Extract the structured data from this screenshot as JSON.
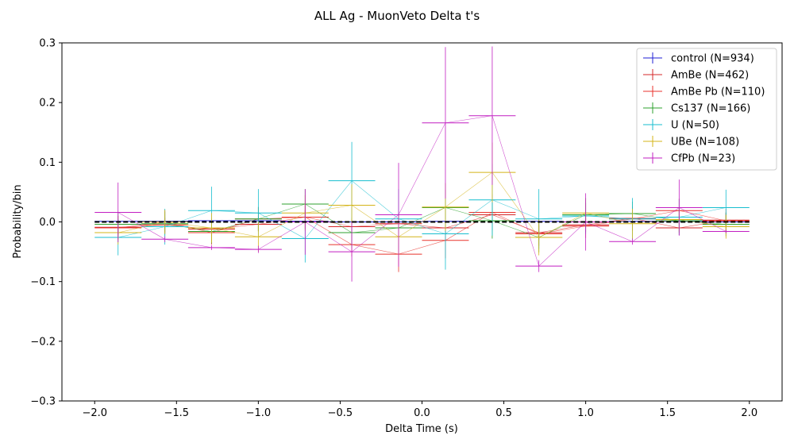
{
  "chart_data": {
    "type": "scatter",
    "title": "ALL Ag - MuonVeto Delta t's",
    "xlabel": "Delta Time (s)",
    "ylabel": "Probability/bin",
    "xlim": [
      -2.2,
      2.2
    ],
    "ylim": [
      -0.3,
      0.3
    ],
    "x_ticks": [
      -2.0,
      -1.5,
      -1.0,
      -0.5,
      0.0,
      0.5,
      1.0,
      1.5,
      2.0
    ],
    "x_tick_labels": [
      "−2.0",
      "−1.5",
      "−1.0",
      "−0.5",
      "0.0",
      "0.5",
      "1.0",
      "1.5",
      "2.0"
    ],
    "y_ticks": [
      -0.3,
      -0.2,
      -0.1,
      0.0,
      0.1,
      0.2,
      0.3
    ],
    "y_tick_labels": [
      "−0.3",
      "−0.2",
      "−0.1",
      "0.0",
      "0.1",
      "0.2",
      "0.3"
    ],
    "grid": false,
    "legend_position": "top-right",
    "bin_half_width": 0.143,
    "baseline": {
      "y": 0.0,
      "style": "dashed",
      "color": "#000000"
    },
    "x": [
      -1.857,
      -1.571,
      -1.286,
      -1.0,
      -0.714,
      -0.429,
      -0.143,
      0.143,
      0.429,
      0.714,
      1.0,
      1.286,
      1.571,
      1.857
    ],
    "series": [
      {
        "name": "control (N=934)",
        "color": "#1f1fd6",
        "y": [
          0.001,
          0.001,
          0.002,
          0.002,
          0.001,
          0.0,
          0.0,
          0.001,
          0.002,
          0.001,
          0.0,
          0.001,
          0.001,
          0.0
        ],
        "err": [
          0.003,
          0.003,
          0.003,
          0.003,
          0.003,
          0.003,
          0.003,
          0.003,
          0.003,
          0.003,
          0.003,
          0.003,
          0.003,
          0.003
        ]
      },
      {
        "name": "AmBe (N=462)",
        "color": "#d62728",
        "y": [
          -0.009,
          -0.005,
          -0.012,
          -0.004,
          0.008,
          -0.008,
          -0.003,
          -0.01,
          0.012,
          -0.018,
          -0.005,
          0.006,
          -0.01,
          0.003
        ],
        "err": [
          0.012,
          0.012,
          0.012,
          0.012,
          0.012,
          0.012,
          0.012,
          0.012,
          0.012,
          0.012,
          0.012,
          0.012,
          0.012,
          0.012
        ]
      },
      {
        "name": "AmBe Pb (N=110)",
        "color": "#e8332c",
        "y": [
          -0.01,
          0.0,
          -0.018,
          0.005,
          0.008,
          -0.038,
          -0.054,
          -0.031,
          0.016,
          -0.02,
          -0.007,
          0.005,
          0.019,
          0.002
        ],
        "err": [
          0.02,
          0.02,
          0.02,
          0.02,
          0.02,
          0.02,
          0.03,
          0.03,
          0.03,
          0.02,
          0.02,
          0.02,
          0.02,
          0.02
        ]
      },
      {
        "name": "Cs137 (N=166)",
        "color": "#2ca02c",
        "y": [
          -0.004,
          -0.003,
          -0.016,
          0.005,
          0.03,
          -0.018,
          -0.01,
          0.024,
          0.002,
          -0.026,
          0.012,
          0.014,
          0.002,
          -0.004
        ],
        "err": [
          0.02,
          0.02,
          0.02,
          0.02,
          0.025,
          0.025,
          0.025,
          0.03,
          0.03,
          0.025,
          0.02,
          0.02,
          0.02,
          0.02
        ]
      },
      {
        "name": "U (N=50)",
        "color": "#17becf",
        "y": [
          -0.026,
          -0.008,
          0.019,
          0.015,
          -0.028,
          0.069,
          0.005,
          -0.02,
          0.037,
          0.005,
          0.01,
          0.005,
          0.008,
          0.024
        ],
        "err": [
          0.03,
          0.03,
          0.04,
          0.04,
          0.04,
          0.065,
          0.05,
          0.06,
          0.06,
          0.05,
          0.03,
          0.035,
          0.03,
          0.03
        ]
      },
      {
        "name": "UBe (N=108)",
        "color": "#d4b419",
        "y": [
          -0.018,
          0.0,
          -0.01,
          -0.025,
          0.015,
          0.028,
          -0.025,
          0.025,
          0.083,
          -0.026,
          0.015,
          -0.003,
          0.004,
          -0.008
        ],
        "err": [
          0.02,
          0.02,
          0.025,
          0.025,
          0.03,
          0.035,
          0.035,
          0.04,
          0.05,
          0.03,
          0.025,
          0.025,
          0.02,
          0.02
        ]
      },
      {
        "name": "CfPb (N=23)",
        "color": "#c21fc2",
        "y": [
          0.016,
          -0.029,
          -0.043,
          -0.046,
          0.0,
          -0.05,
          0.012,
          0.166,
          0.178,
          -0.074,
          0.0,
          -0.033,
          0.024,
          -0.016
        ],
        "err": [
          0.05,
          0.005,
          0.004,
          0.006,
          0.055,
          0.05,
          0.087,
          0.127,
          0.116,
          0.01,
          0.048,
          0.005,
          0.047,
          0.003
        ]
      }
    ]
  }
}
